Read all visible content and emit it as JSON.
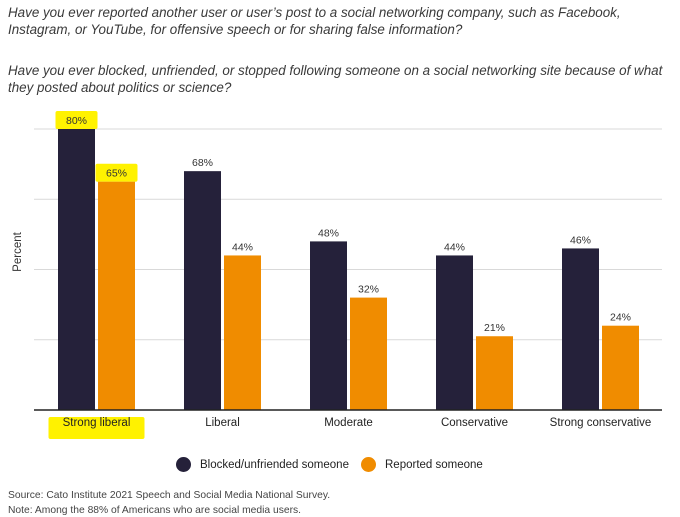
{
  "questions": {
    "q1": "Have you ever reported another user or user’s post to a social networking company, such as Facebook, Instagram, or YouTube, for offensive speech or for sharing false information?",
    "q2": "Have you ever blocked, unfriended, or stopped following someone on a social networking site because of what they posted about politics or science?"
  },
  "chart_data": {
    "type": "bar",
    "ylabel": "Percent",
    "ylim": [
      0,
      80
    ],
    "grid": true,
    "categories": [
      "Strong liberal",
      "Liberal",
      "Moderate",
      "Conservative",
      "Strong conservative"
    ],
    "series": [
      {
        "name": "Blocked/unfriended someone",
        "color": "#25213a",
        "values": [
          80,
          68,
          48,
          44,
          46
        ],
        "labels": [
          "80%",
          "68%",
          "48%",
          "44%",
          "46%"
        ]
      },
      {
        "name": "Reported someone",
        "color": "#f08c00",
        "values": [
          65,
          44,
          32,
          21,
          24
        ],
        "labels": [
          "65%",
          "44%",
          "32%",
          "21%",
          "24%"
        ]
      }
    ],
    "legend": "bottom",
    "highlight_color": "#fff200",
    "highlighted": [
      "80%",
      "65%",
      "Strong liberal"
    ]
  },
  "footer": {
    "source": "Source: Cato Institute 2021 Speech and Social Media National Survey.",
    "note": "Note: Among the 88% of Americans who are social media users."
  }
}
